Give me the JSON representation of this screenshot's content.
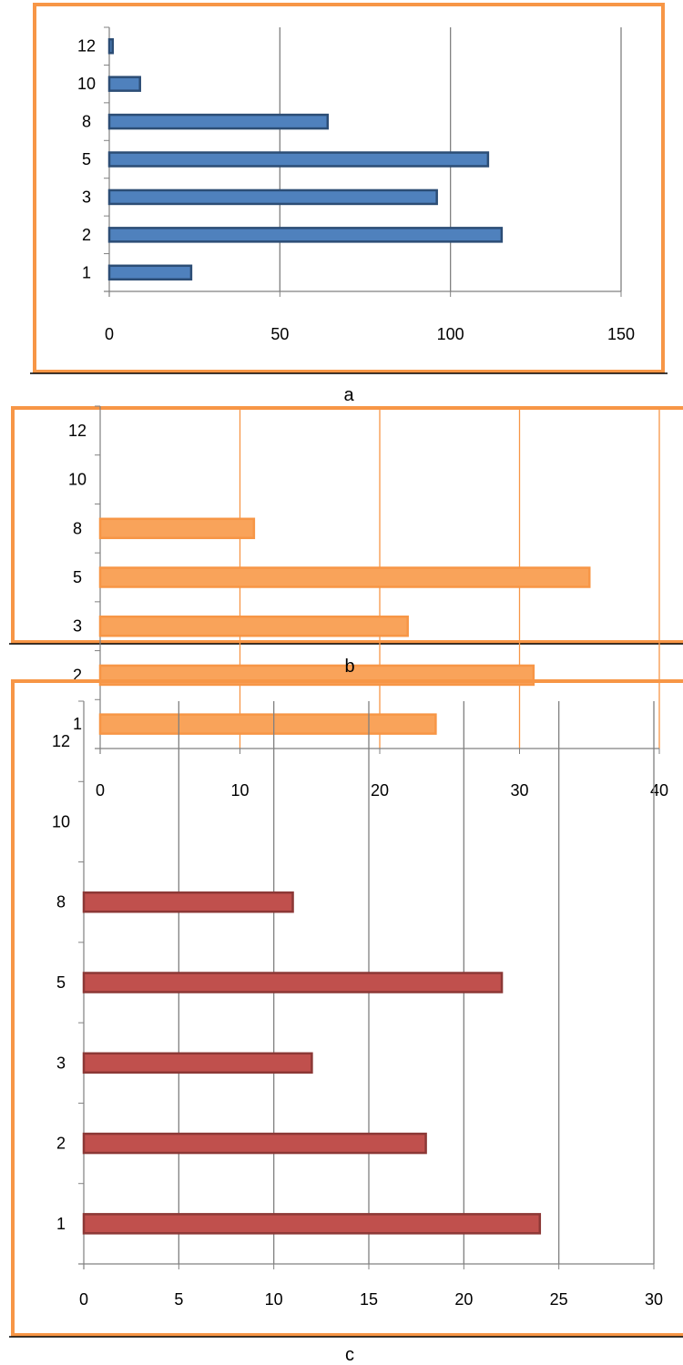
{
  "chart_data": [
    {
      "type": "bar",
      "orientation": "horizontal",
      "panel_label": "a",
      "categories": [
        "1",
        "2",
        "3",
        "5",
        "8",
        "10",
        "12"
      ],
      "values": [
        24,
        115,
        96,
        111,
        64,
        9,
        1
      ],
      "xlim": [
        0,
        150
      ],
      "xticks": [
        "0",
        "50",
        "100",
        "150"
      ],
      "grid": true,
      "bar_color": "#4F81BD",
      "bar_edge_color": "#2C4D75",
      "grid_color": "#808080",
      "frame_color": "#F79646"
    },
    {
      "type": "bar",
      "orientation": "horizontal",
      "panel_label": "b",
      "categories": [
        "1",
        "2",
        "3",
        "5",
        "8",
        "10",
        "12"
      ],
      "values": [
        24,
        31,
        22,
        35,
        11,
        0,
        0
      ],
      "xlim": [
        0,
        40
      ],
      "xticks": [
        "0",
        "10",
        "20",
        "30",
        "40"
      ],
      "grid": true,
      "bar_color": "#F9A35A",
      "bar_edge_color": "#F79646",
      "grid_color": "#F79646",
      "frame_color": "#F79646"
    },
    {
      "type": "bar",
      "orientation": "horizontal",
      "panel_label": "c",
      "categories": [
        "1",
        "2",
        "3",
        "5",
        "8",
        "10",
        "12"
      ],
      "values": [
        24,
        18,
        12,
        22,
        11,
        0,
        0
      ],
      "xlim": [
        0,
        30
      ],
      "xticks": [
        "0",
        "5",
        "10",
        "15",
        "20",
        "25",
        "30"
      ],
      "grid": true,
      "bar_color": "#C0504D",
      "bar_edge_color": "#8C3836",
      "grid_color": "#808080",
      "frame_color": "#F79646"
    }
  ]
}
